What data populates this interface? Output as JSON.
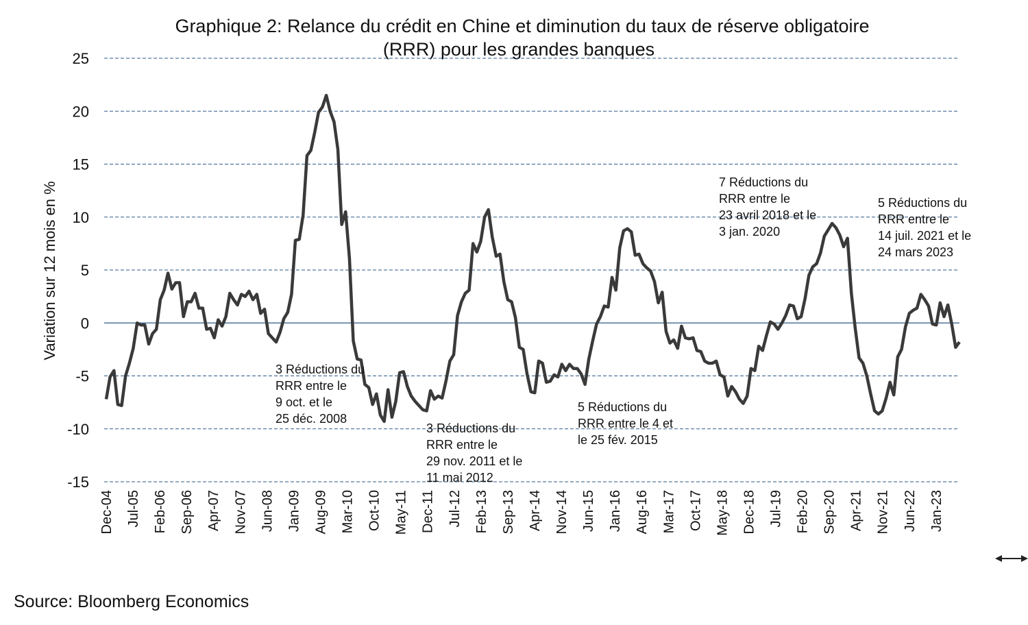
{
  "chart_data": {
    "type": "line",
    "title": "Graphique 2: Relance du crédit en Chine et diminution du taux de réserve obligatoire (RRR) pour les grandes banques",
    "title_lines": [
      "Graphique 2: Relance du crédit en Chine et diminution du taux de réserve obligatoire",
      "(RRR) pour les grandes banques"
    ],
    "xlabel": "",
    "ylabel": "Variation sur 12 mois en %",
    "ylim": [
      -15,
      25
    ],
    "yticks": [
      25,
      20,
      15,
      10,
      5,
      0,
      -5,
      -10,
      -15
    ],
    "xticks": [
      "Dec-04",
      "Jul-05",
      "Feb-06",
      "Sep-06",
      "Apr-07",
      "Nov-07",
      "Jun-08",
      "Jan-09",
      "Aug-09",
      "Mar-10",
      "Oct-10",
      "May-11",
      "Dec-11",
      "Jul-12",
      "Feb-13",
      "Sep-13",
      "Apr-14",
      "Nov-14",
      "Jun-15",
      "Jan-16",
      "Aug-16",
      "Mar-17",
      "Oct-17",
      "May-18",
      "Dec-18",
      "Jul-19",
      "Feb-20",
      "Sep-20",
      "Apr-21",
      "Nov-21",
      "Jun-22",
      "Jan-23"
    ],
    "grid": "horizontal dashed",
    "line_color": "#3a3a3a",
    "grid_color": "#2e5a8a",
    "series": [
      {
        "values": [
          -7.2,
          -5.1,
          -4.5,
          -7.7,
          -7.8,
          -5.0,
          -3.8,
          -2.4,
          0,
          -0.2,
          -0.2,
          -2.0,
          -1.0,
          -0.6,
          2.2,
          3.1,
          4.7,
          3.2,
          3.8,
          3.8,
          0.6,
          2.0,
          2.0,
          2.8,
          1.4,
          1.4,
          -0.6,
          -0.5,
          -1.4,
          0.3,
          -0.3,
          0.6,
          2.8,
          2.2,
          1.7,
          2.7,
          2.5,
          3.0,
          2.2,
          2.7,
          0.9,
          1.3,
          -1.0,
          -1.4,
          -1.8,
          -0.9,
          0.4,
          1.0,
          2.7,
          7.8,
          7.9,
          10.2,
          15.8,
          16.3,
          18.0,
          19.9,
          20.4,
          21.5,
          20.0,
          19.0,
          16.4,
          9.3,
          10.5,
          6.1,
          -1.7,
          -3.4,
          -3.5,
          -5.8,
          -6.1,
          -7.7,
          -6.7,
          -8.7,
          -9.3,
          -6.3,
          -8.9,
          -7.4,
          -4.7,
          -4.6,
          -6.0,
          -6.9,
          -7.4,
          -7.8,
          -8.2,
          -8.3,
          -6.4,
          -7.2,
          -6.9,
          -7.1,
          -5.5,
          -3.6,
          -3.0,
          0.7,
          2.0,
          2.8,
          3.1,
          7.5,
          6.7,
          7.7,
          10.0,
          10.7,
          8.1,
          6.3,
          6.5,
          3.9,
          2.2,
          2.0,
          0.5,
          -2.3,
          -2.5,
          -4.8,
          -6.5,
          -6.6,
          -3.6,
          -3.8,
          -5.6,
          -5.5,
          -4.9,
          -5.1,
          -3.9,
          -4.5,
          -3.9,
          -4.3,
          -4.3,
          -4.8,
          -5.8,
          -3.4,
          -1.7,
          -0.1,
          0.6,
          1.6,
          1.5,
          4.3,
          3.1,
          7.1,
          8.7,
          8.9,
          8.6,
          6.4,
          6.5,
          5.6,
          5.2,
          4.9,
          3.9,
          1.9,
          2.9,
          -0.8,
          -1.9,
          -1.6,
          -2.4,
          -0.3,
          -1.4,
          -1.5,
          -1.4,
          -2.6,
          -2.7,
          -3.6,
          -3.8,
          -3.8,
          -3.6,
          -4.9,
          -5.1,
          -6.9,
          -6.0,
          -6.5,
          -7.2,
          -7.6,
          -6.9,
          -4.3,
          -4.5,
          -2.2,
          -2.6,
          -1.2,
          0.1,
          -0.1,
          -0.6,
          0,
          0.7,
          1.7,
          1.6,
          0.4,
          0.6,
          2.3,
          4.5,
          5.3,
          5.6,
          6.6,
          8.2,
          8.8,
          9.4,
          9.0,
          8.3,
          7.2,
          8.0,
          2.8,
          -0.5,
          -3.3,
          -3.8,
          -5.0,
          -6.7,
          -8.3,
          -8.6,
          -8.3,
          -7.1,
          -5.6,
          -6.8,
          -3.2,
          -2.5,
          -0.4,
          0.9,
          1.2,
          1.4,
          2.7,
          2.2,
          1.6,
          -0.1,
          -0.2,
          1.9,
          0.6,
          1.7,
          -0.1,
          -2.3,
          -1.8
        ]
      }
    ],
    "annotations": [
      {
        "lines": [
          "3 Réductions du",
          "RRR entre le",
          "9 oct. et le",
          "25 déc. 2008"
        ]
      },
      {
        "lines": [
          "3 Réductions du",
          "RRR entre le",
          "29 nov. 2011 et le",
          "11 mai 2012"
        ]
      },
      {
        "lines": [
          "5 Réductions du",
          "RRR entre le 4 et",
          "le 25 fév. 2015"
        ]
      },
      {
        "lines": [
          "7 Réductions du",
          "RRR entre le",
          "23 avril 2018 et le",
          "3 jan. 2020"
        ]
      },
      {
        "lines": [
          "5 Réductions du",
          "RRR entre le",
          "14 juil. 2021 et le",
          "24 mars 2023"
        ]
      }
    ]
  },
  "source": "Source: Bloomberg Economics",
  "icons": {
    "corner": "resize-horizontal-icon"
  }
}
